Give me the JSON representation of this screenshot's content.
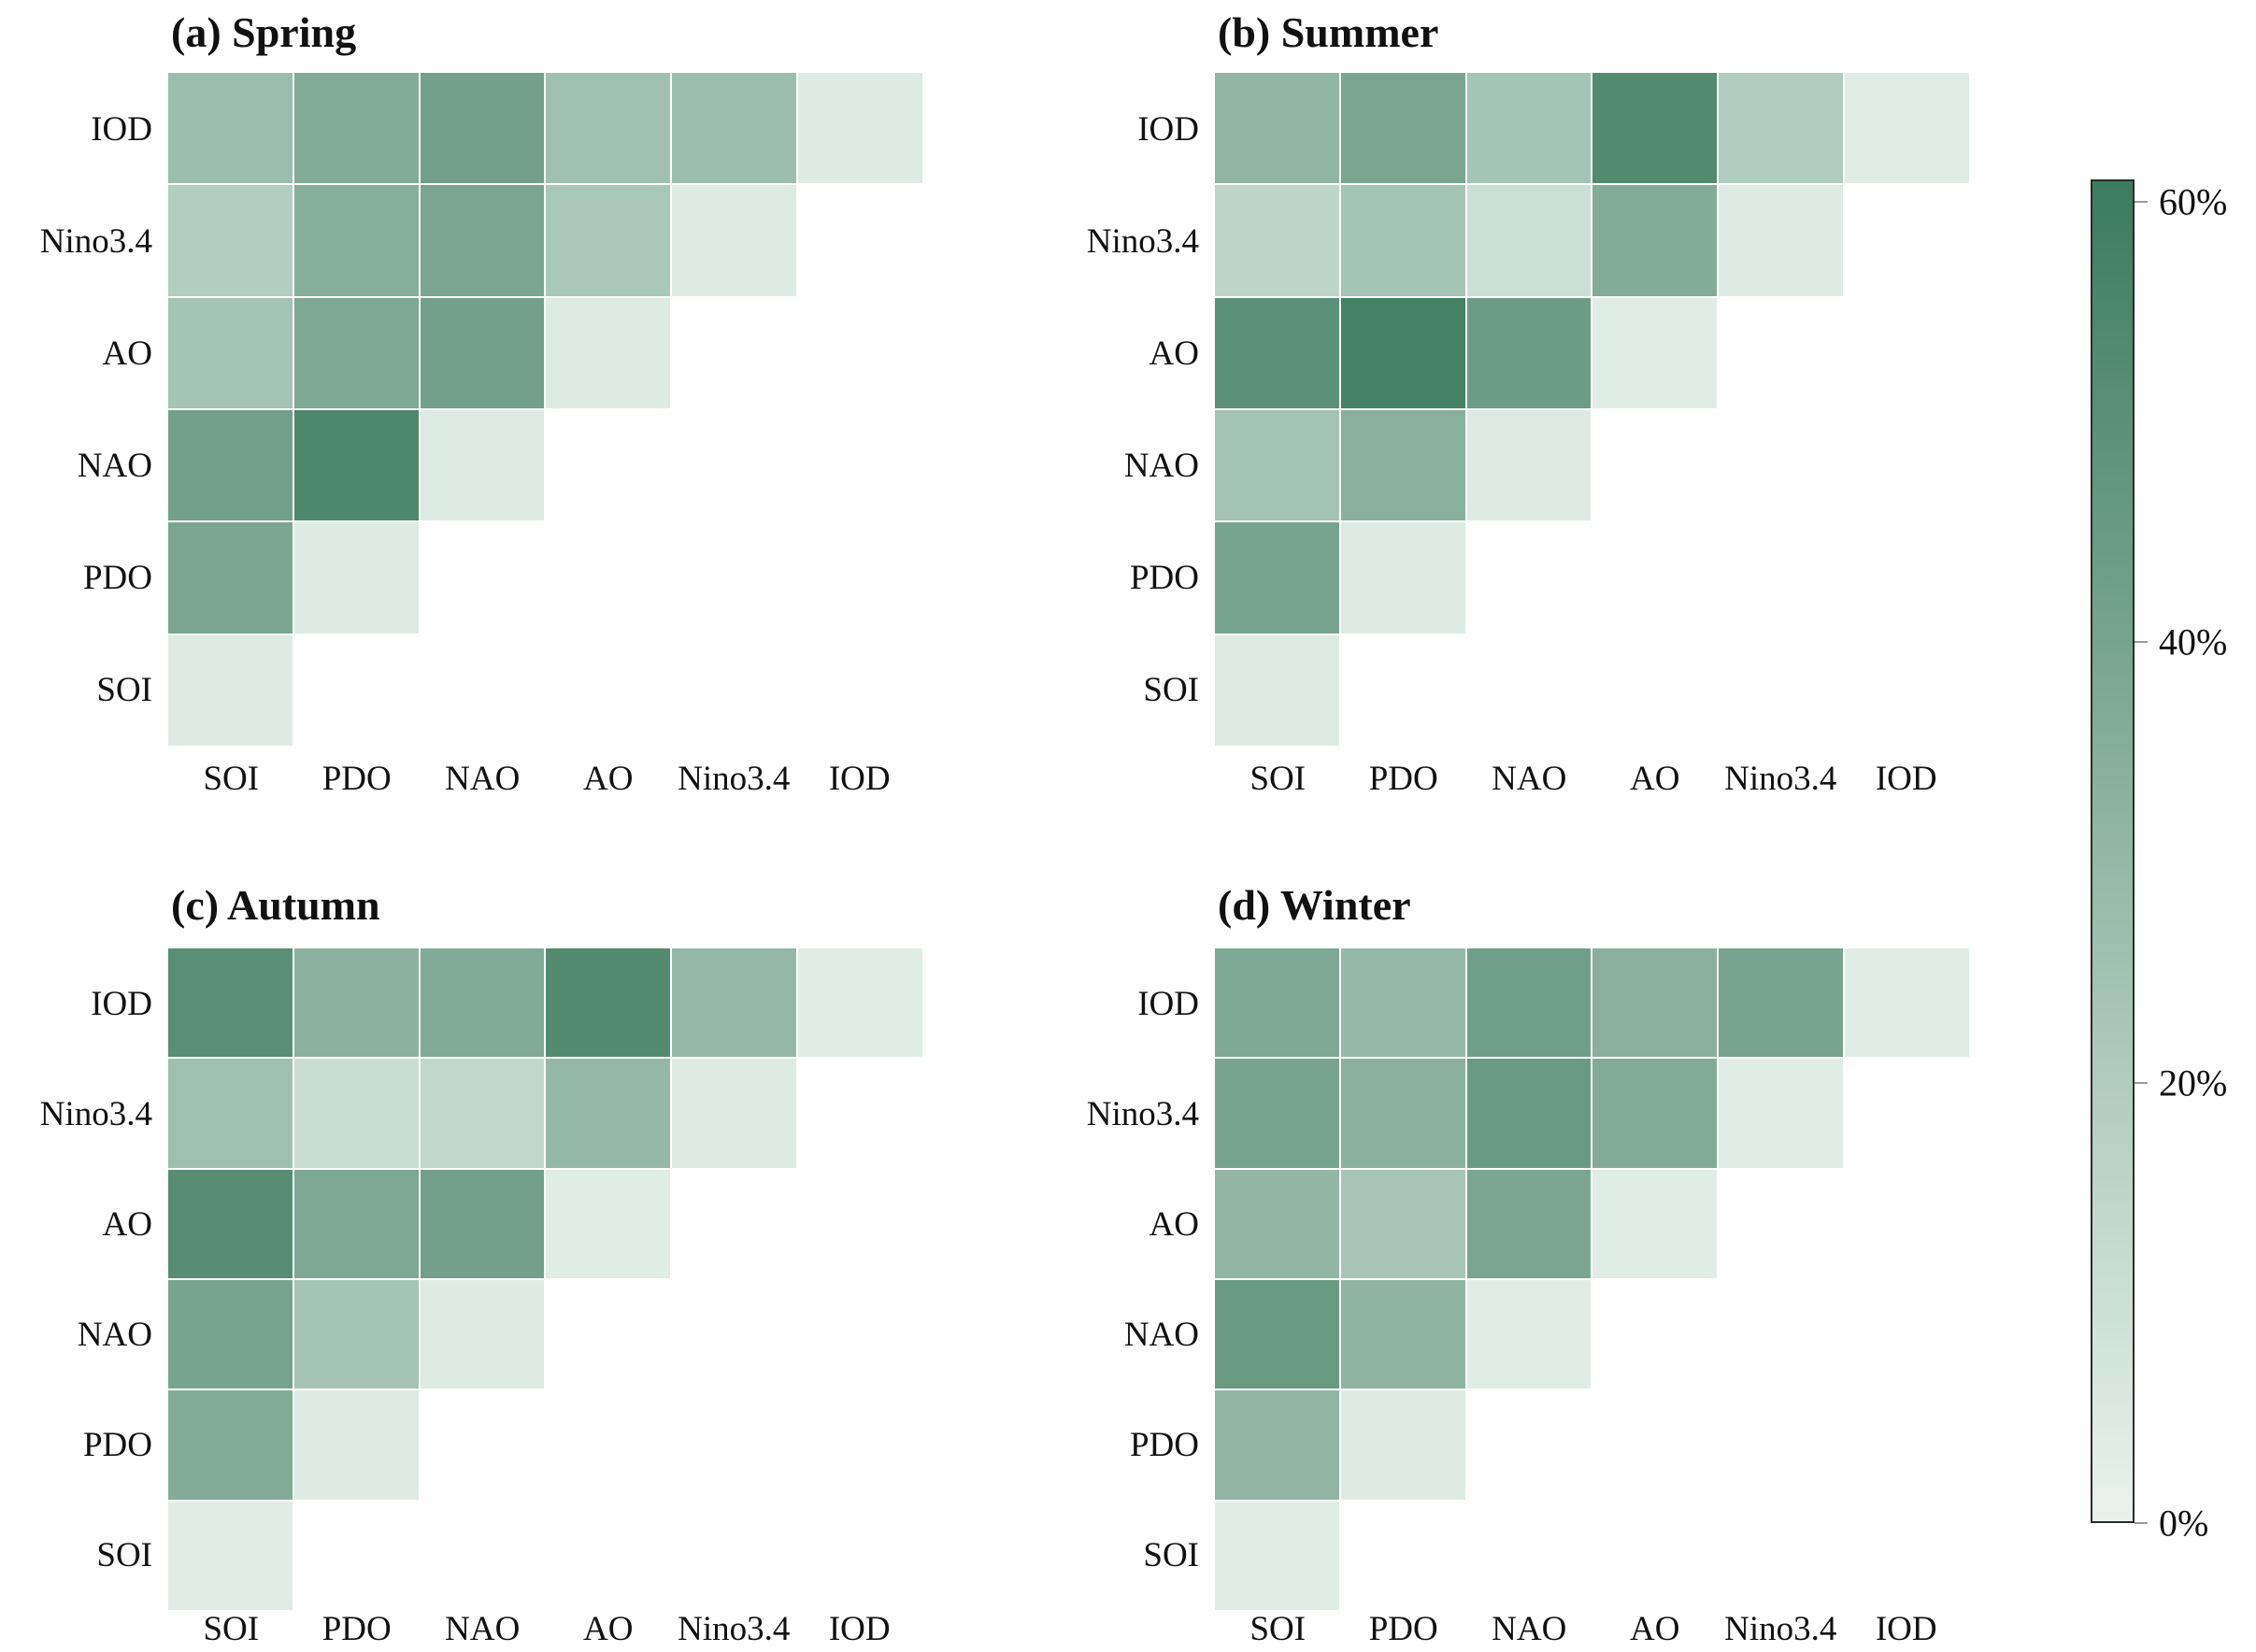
{
  "figure": {
    "background": "#ffffff",
    "description_unit": "%"
  },
  "chart_data": {
    "type": "heatmap",
    "layout": "2x2 lower-triangular correlation-style heatmaps with shared colorbar",
    "x_labels": [
      "SOI",
      "PDO",
      "NAO",
      "AO",
      "Nino3.4",
      "IOD"
    ],
    "y_labels": [
      "IOD",
      "Nino3.4",
      "AO",
      "NAO",
      "PDO",
      "SOI"
    ],
    "value_min": 0,
    "value_max": 60,
    "value_unit": "%",
    "subplots": [
      {
        "id": "a",
        "title": "(a) Spring",
        "matrix": [
          [
            27,
            36,
            42,
            26,
            27,
            4
          ],
          [
            19,
            35,
            39,
            22,
            4,
            null
          ],
          [
            24,
            38,
            42,
            4,
            null,
            null
          ],
          [
            42,
            55,
            4,
            null,
            null,
            null
          ],
          [
            39,
            4,
            null,
            null,
            null,
            null
          ],
          [
            4,
            null,
            null,
            null,
            null,
            null
          ]
        ]
      },
      {
        "id": "b",
        "title": "(b) Summer",
        "matrix": [
          [
            31,
            39,
            24,
            53,
            20,
            3
          ],
          [
            15,
            24,
            10,
            36,
            4,
            null
          ],
          [
            50,
            58,
            44,
            3,
            null,
            null
          ],
          [
            24,
            34,
            4,
            null,
            null,
            null
          ],
          [
            40,
            4,
            null,
            null,
            null,
            null
          ],
          [
            4,
            null,
            null,
            null,
            null,
            null
          ]
        ]
      },
      {
        "id": "c",
        "title": "(c) Autumn",
        "matrix": [
          [
            51,
            33,
            37,
            53,
            30,
            3
          ],
          [
            26,
            11,
            14,
            30,
            4,
            null
          ],
          [
            52,
            38,
            42,
            3,
            null,
            null
          ],
          [
            40,
            24,
            4,
            null,
            null,
            null
          ],
          [
            36,
            4,
            null,
            null,
            null,
            null
          ],
          [
            3,
            null,
            null,
            null,
            null,
            null
          ]
        ]
      },
      {
        "id": "d",
        "title": "(d) Winter",
        "matrix": [
          [
            38,
            30,
            43,
            34,
            40,
            3
          ],
          [
            40,
            33,
            45,
            36,
            3,
            null
          ],
          [
            31,
            23,
            39,
            3,
            null,
            null
          ],
          [
            45,
            32,
            3,
            null,
            null,
            null
          ],
          [
            31,
            4,
            null,
            null,
            null,
            null
          ],
          [
            3,
            null,
            null,
            null,
            null,
            null
          ]
        ]
      }
    ],
    "colorbar": {
      "tick_labels": [
        "60%",
        "40%",
        "20%",
        "0%"
      ],
      "tick_values": [
        60,
        40,
        20,
        0
      ],
      "scale_max_drawn": 61,
      "color_low": "#e8f3ed",
      "color_high": "#3f7d60",
      "legend_position": "right"
    }
  }
}
